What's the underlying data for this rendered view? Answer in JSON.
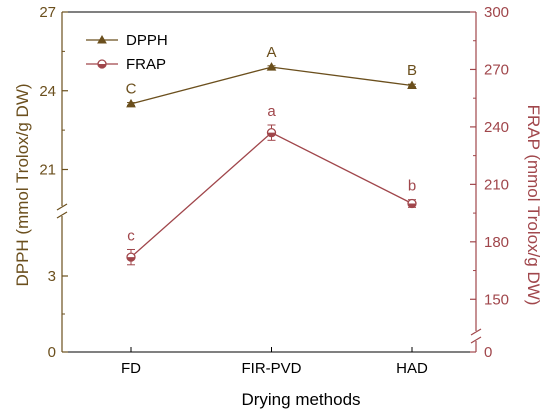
{
  "chart_data": {
    "type": "line",
    "xlabel": "Drying methods",
    "categories": [
      "FD",
      "FIR-PVD",
      "HAD"
    ],
    "y_left": {
      "label": "DPPH (mmol Trolox/g DW)",
      "ticks": [
        "0",
        "3",
        "21",
        "24",
        "27"
      ],
      "broken": true,
      "segments": [
        [
          0,
          4.5
        ],
        [
          19,
          27
        ]
      ],
      "color": "#6b4f1d"
    },
    "y_right": {
      "label": "FRAP (mmol Trolox/g DW)",
      "ticks": [
        "0",
        "150",
        "180",
        "210",
        "240",
        "270",
        "300"
      ],
      "broken": true,
      "segments": [
        [
          0,
          0
        ],
        [
          135,
          300
        ]
      ],
      "color": "#a0464b"
    },
    "series": [
      {
        "name": "DPPH",
        "axis": "left",
        "marker": "triangle",
        "color": "#6b4f1d",
        "values": [
          23.5,
          24.9,
          24.2
        ],
        "errors": [
          0.05,
          0.05,
          0.05
        ],
        "letters": [
          "C",
          "A",
          "B"
        ]
      },
      {
        "name": "FRAP",
        "axis": "right",
        "marker": "circle",
        "color": "#a0464b",
        "values": [
          172,
          237,
          200
        ],
        "errors": [
          4,
          4,
          2
        ],
        "letters": [
          "c",
          "a",
          "b"
        ]
      }
    ],
    "legend": {
      "position": "top-left"
    }
  }
}
